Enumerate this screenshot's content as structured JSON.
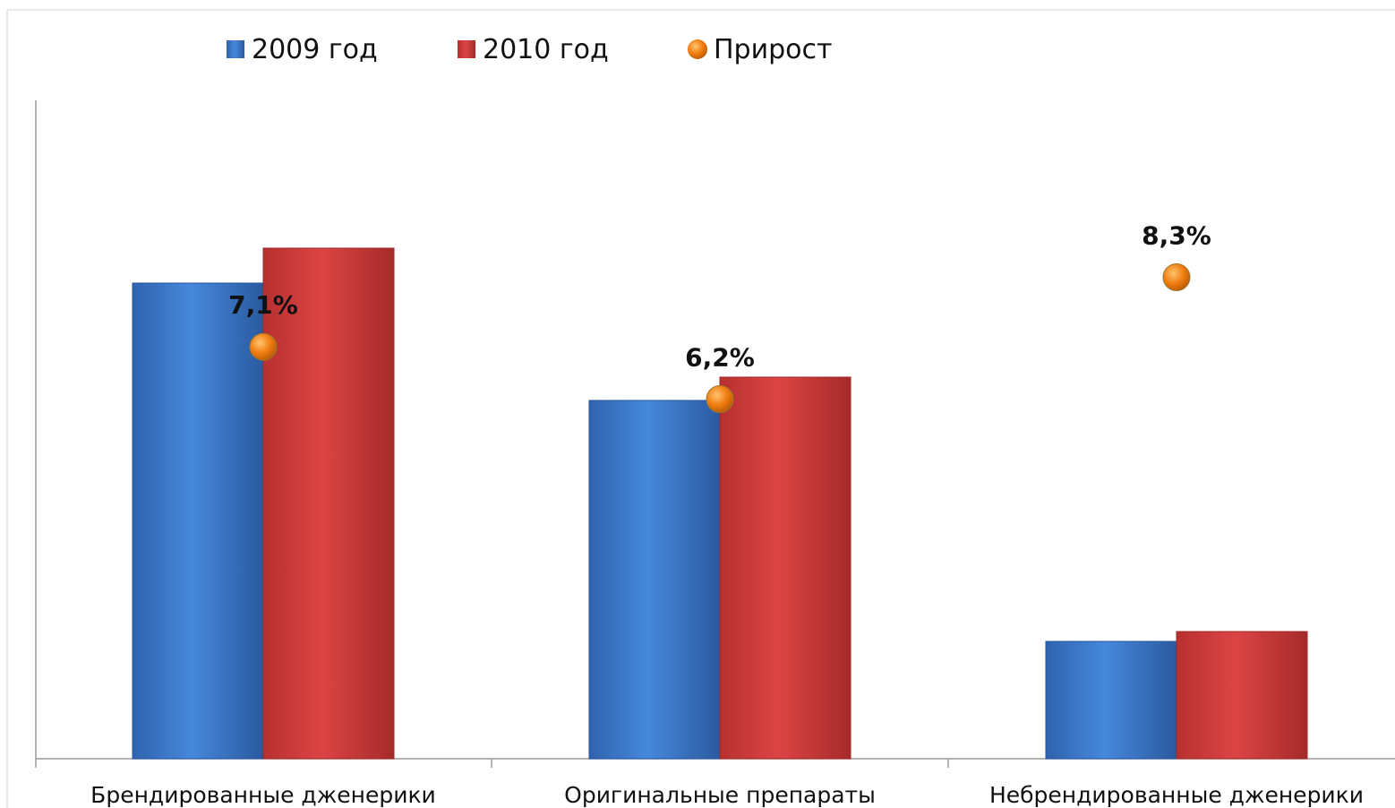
{
  "chart_data": {
    "type": "bar",
    "title": "",
    "xlabel": "",
    "ylabel": "",
    "categories": [
      "Брендированные дженерики",
      "Оригинальные препараты",
      "Небрендированные дженерики"
    ],
    "series": [
      {
        "name": "2009 год",
        "values": [
          531,
          400,
          131
        ],
        "color": "#3a7ad0"
      },
      {
        "name": "2010 год",
        "values": [
          570,
          426,
          142
        ],
        "color": "#cf3b3b"
      }
    ],
    "growth": {
      "name": "Прирост",
      "labels": [
        "7,1%",
        "6,2%",
        "8,3%"
      ],
      "values": [
        7.1,
        6.2,
        8.3
      ],
      "color": "#f07d10"
    },
    "ylim": [
      0,
      735
    ],
    "y_axis_ticks_shown": false,
    "grid": false,
    "legend": "top"
  }
}
